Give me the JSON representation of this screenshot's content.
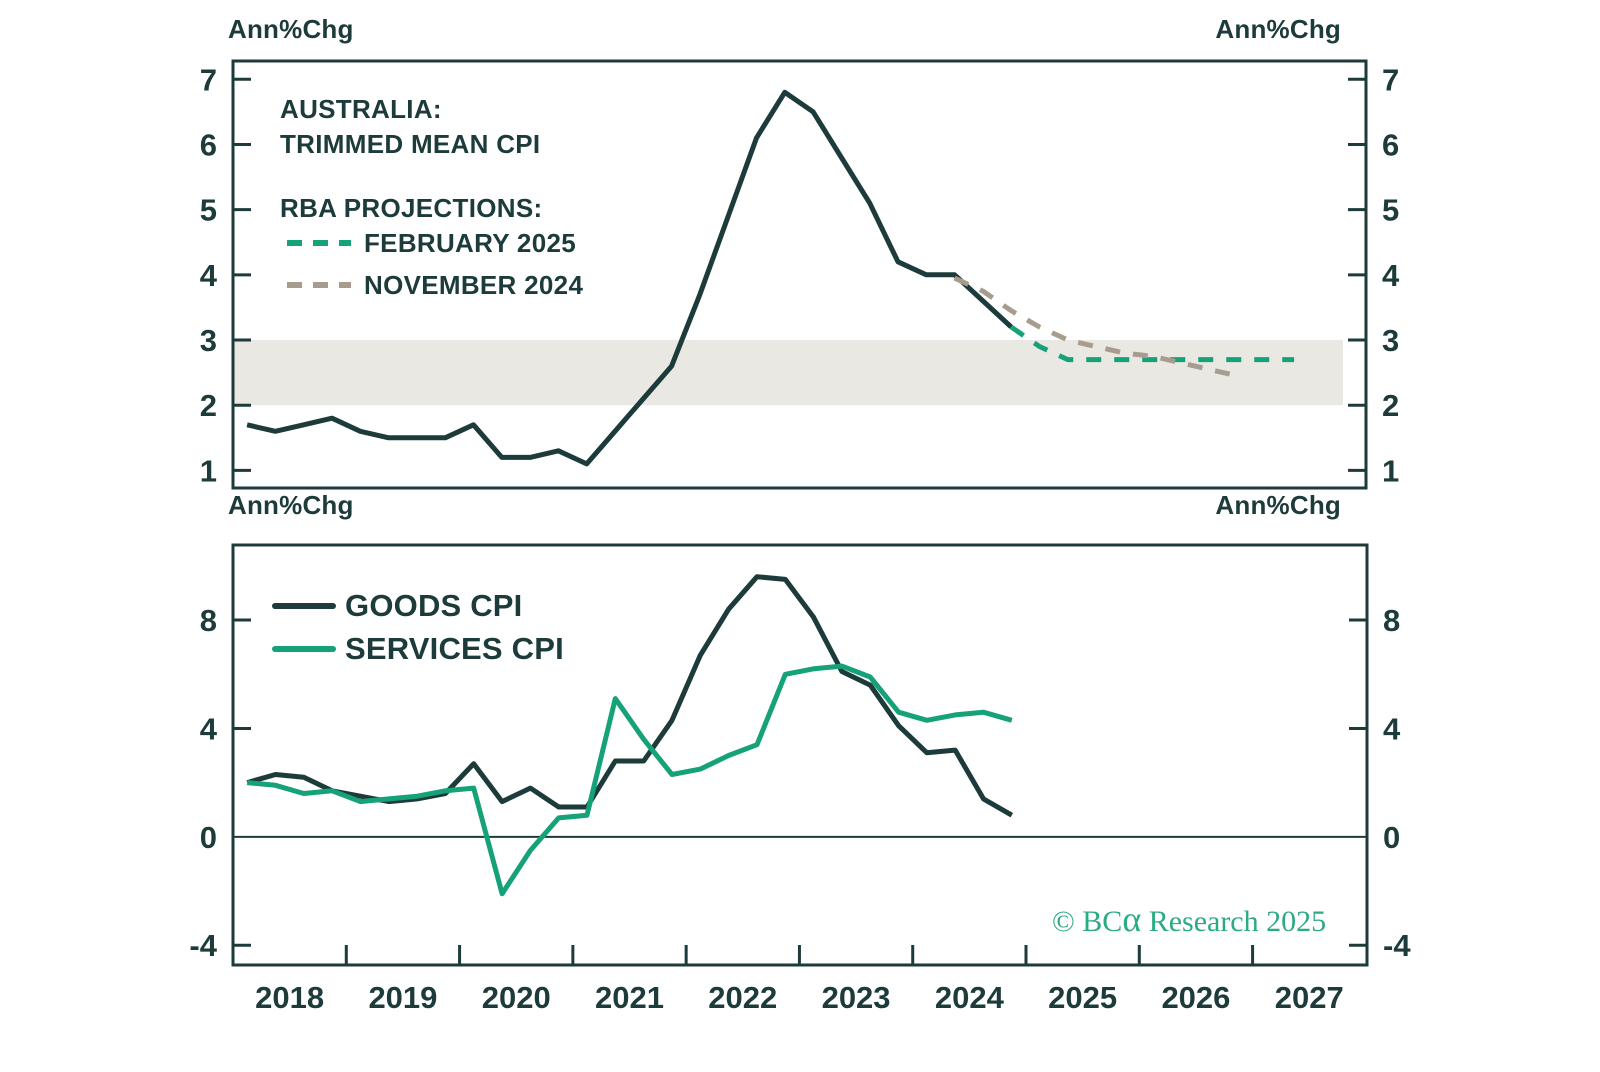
{
  "colors": {
    "dark": "#1c3b3a",
    "green": "#16a279",
    "taupe": "#a89c8e",
    "band": "#e9e8e2",
    "credit_green": "#2bab85"
  },
  "text": {
    "ann_chg": "Ann%Chg",
    "title_line1": "AUSTRALIA:",
    "title_line2": "TRIMMED MEAN CPI",
    "projections_heading": "RBA PROJECTIONS:",
    "proj_feb_label": "FEBRUARY 2025",
    "proj_nov_label": "NOVEMBER 2024",
    "goods_label": "GOODS CPI",
    "services_label": "SERVICES CPI",
    "credit_prefix": "© BC",
    "credit_alpha": "α",
    "credit_suffix": " Research 2025"
  },
  "chart_data": [
    {
      "type": "line",
      "title": "AUSTRALIA: TRIMMED MEAN CPI",
      "ylabel_left": "Ann%Chg",
      "ylabel_right": "Ann%Chg",
      "ylim": [
        0.73,
        7.28
      ],
      "yticks": [
        1,
        2,
        3,
        4,
        5,
        6,
        7
      ],
      "xlim": [
        2018,
        2028
      ],
      "x_step": 0.25,
      "grid": false,
      "target_band": {
        "from": 2,
        "to": 3
      },
      "legend_position": "upper-left",
      "series": [
        {
          "name": "TRIMMED MEAN CPI",
          "style": "solid",
          "color_key": "dark",
          "x_start": 2018.125,
          "values": [
            1.7,
            1.6,
            1.7,
            1.8,
            1.6,
            1.5,
            1.5,
            1.5,
            1.7,
            1.2,
            1.2,
            1.3,
            1.1,
            1.6,
            2.1,
            2.6,
            3.7,
            4.9,
            6.1,
            6.8,
            6.5,
            5.8,
            5.1,
            4.2,
            4.0,
            4.0,
            3.6,
            3.2
          ]
        },
        {
          "name": "RBA PROJECTION FEBRUARY 2025",
          "style": "dashed",
          "color_key": "green",
          "x_start": 2024.875,
          "values": [
            3.2,
            2.9,
            2.7,
            2.7,
            2.7,
            2.7,
            2.7,
            2.7,
            2.7,
            2.7,
            2.7
          ]
        },
        {
          "name": "RBA PROJECTION NOVEMBER 2024",
          "style": "dashed",
          "color_key": "taupe",
          "x_start": 2024.375,
          "values": [
            3.95,
            3.75,
            3.45,
            3.2,
            3.0,
            2.9,
            2.8,
            2.75,
            2.65,
            2.55,
            2.45
          ]
        }
      ]
    },
    {
      "type": "line",
      "title": "GOODS CPI VS SERVICES CPI",
      "ylabel_left": "Ann%Chg",
      "ylabel_right": "Ann%Chg",
      "ylim": [
        -4.73,
        10.77
      ],
      "yticks": [
        -4,
        0,
        4,
        8
      ],
      "zero_line": true,
      "xlim": [
        2018,
        2028
      ],
      "x_step": 0.25,
      "grid": false,
      "xticks_years": [
        2019,
        2020,
        2021,
        2022,
        2023,
        2024,
        2025,
        2026,
        2027
      ],
      "year_labels": [
        "2018",
        "2019",
        "2020",
        "2021",
        "2022",
        "2023",
        "2024",
        "2025",
        "2026",
        "2027"
      ],
      "legend_position": "upper-left",
      "series": [
        {
          "name": "GOODS CPI",
          "style": "solid",
          "color_key": "dark",
          "x_start": 2018.125,
          "values": [
            2.0,
            2.3,
            2.2,
            1.7,
            1.5,
            1.3,
            1.4,
            1.6,
            2.7,
            1.3,
            1.8,
            1.1,
            1.1,
            2.8,
            2.8,
            4.3,
            6.7,
            8.4,
            9.6,
            9.5,
            8.1,
            6.1,
            5.6,
            4.1,
            3.1,
            3.2,
            1.4,
            0.8
          ]
        },
        {
          "name": "SERVICES CPI",
          "style": "solid",
          "color_key": "green",
          "x_start": 2018.125,
          "values": [
            2.0,
            1.9,
            1.6,
            1.7,
            1.3,
            1.4,
            1.5,
            1.7,
            1.8,
            -2.1,
            -0.5,
            0.7,
            0.8,
            5.1,
            3.6,
            2.3,
            2.5,
            3.0,
            3.4,
            6.0,
            6.2,
            6.3,
            5.9,
            4.6,
            4.3,
            4.5,
            4.6,
            4.3
          ]
        }
      ]
    }
  ]
}
